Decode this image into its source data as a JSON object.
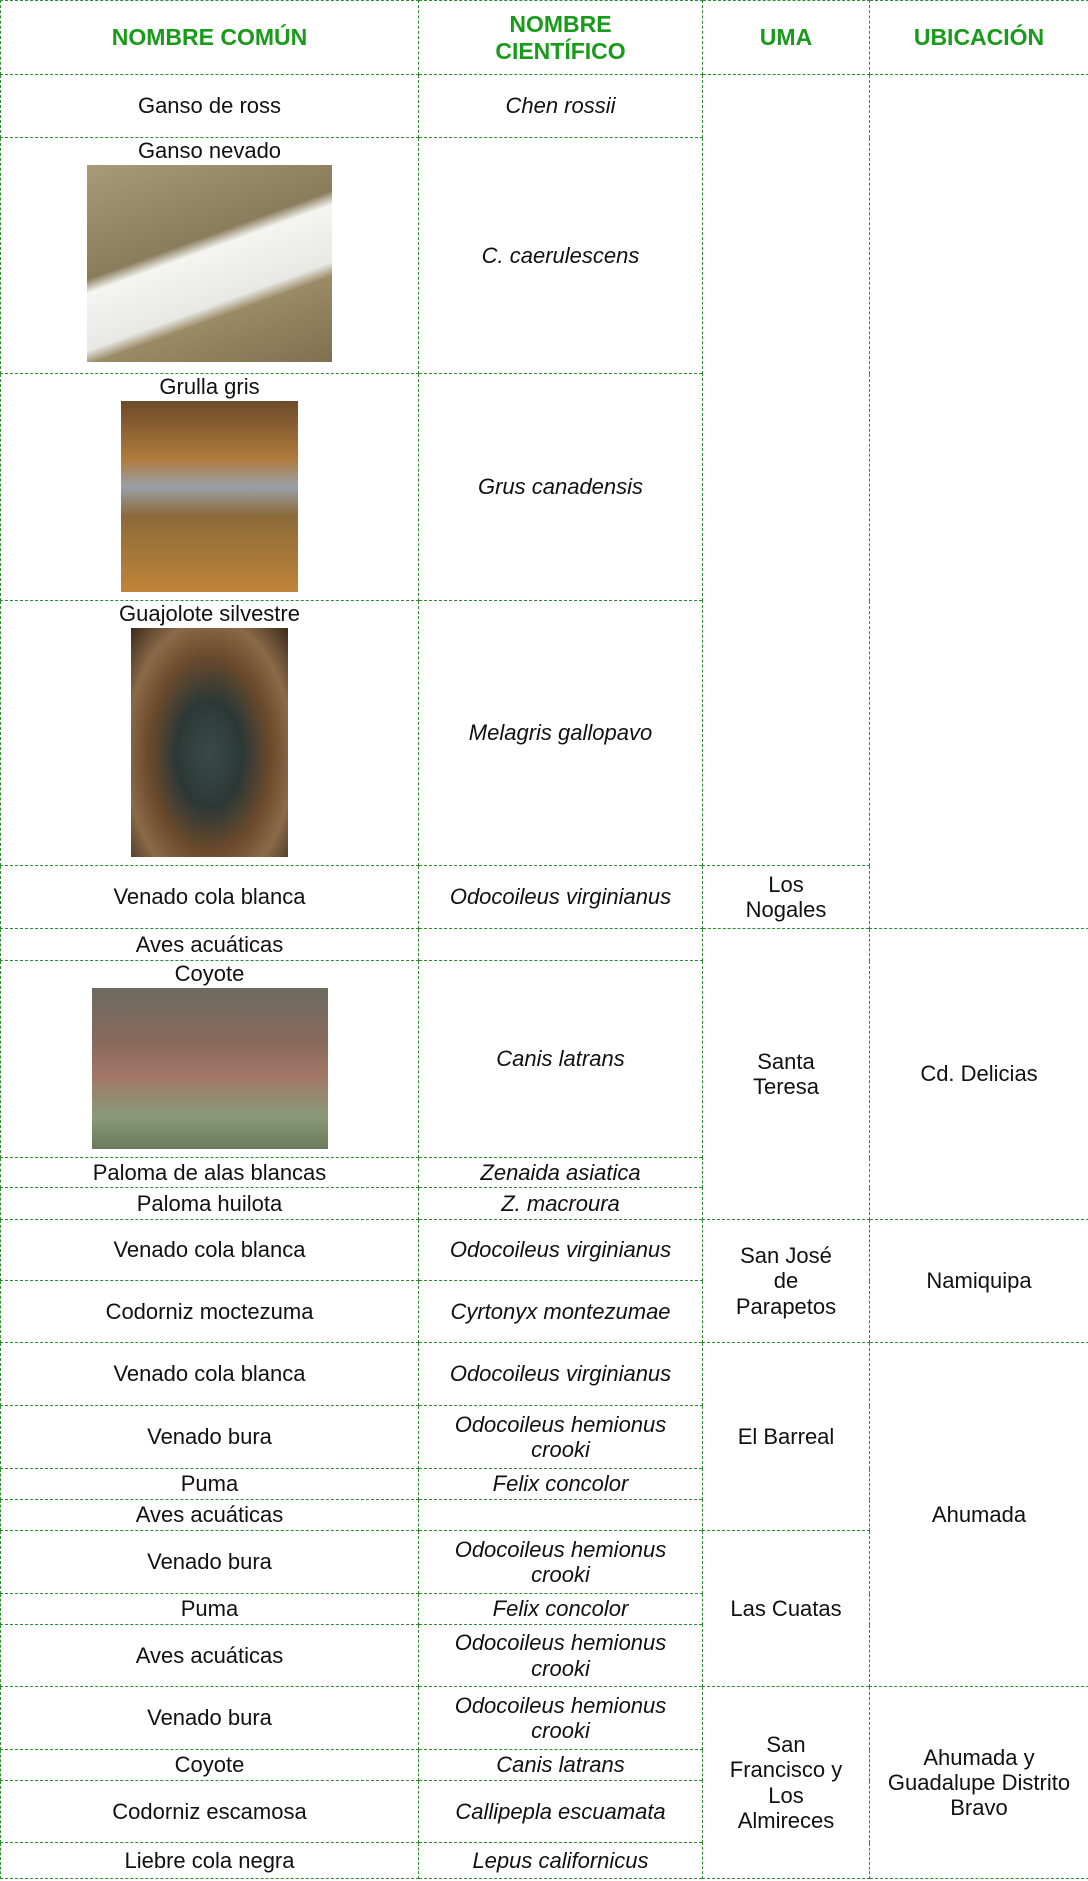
{
  "header": [
    "NOMBRE COMÚN",
    "NOMBRE CIENTÍFICO",
    "UMA",
    "UBICACIÓN"
  ],
  "locations": [
    {
      "umas": [
        {
          "species": [
            {
              "common": "Ganso de ross",
              "scientific": "Chen rossii"
            },
            {
              "common": "Ganso nevado",
              "scientific": "C. caerulescens"
            },
            {
              "common": "Grulla gris",
              "scientific": "Grus canadensis"
            },
            {
              "common": "Guajolote silvestre",
              "scientific": "Melagris gallopavo"
            }
          ]
        },
        {
          "name": "Los Nogales",
          "species": [
            {
              "common": "Venado cola blanca",
              "scientific": "Odocoileus virginianus"
            }
          ]
        }
      ]
    },
    {
      "name": "Cd. Delicias",
      "umas": [
        {
          "name": "Santa Teresa",
          "species": [
            {
              "common": "Aves acuáticas"
            },
            {
              "common": "Coyote",
              "scientific": "Canis latrans"
            },
            {
              "common": "Paloma de alas blancas",
              "scientific": "Zenaida asiatica"
            },
            {
              "common": "Paloma huilota",
              "scientific": "Z. macroura"
            }
          ]
        }
      ]
    },
    {
      "name": "Namiquipa",
      "umas": [
        {
          "name": "San José de Parapetos",
          "species": [
            {
              "common": "Venado cola blanca",
              "scientific": "Odocoileus virginianus"
            },
            {
              "common": "Codorniz moctezuma",
              "scientific": "Cyrtonyx montezumae"
            }
          ]
        }
      ]
    },
    {
      "name": "Ahumada",
      "umas": [
        {
          "name": "El Barreal",
          "species": [
            {
              "common": "Venado cola blanca",
              "scientific": "Odocoileus virginianus"
            },
            {
              "common": "Venado bura",
              "scientific": "Odocoileus hemionus crooki"
            },
            {
              "common": "Puma",
              "scientific": "Felix concolor"
            },
            {
              "common": "Aves acuáticas"
            }
          ]
        },
        {
          "name": "Las Cuatas",
          "species": [
            {
              "common": "Venado bura",
              "scientific": "Odocoileus hemionus crooki"
            },
            {
              "common": "Puma",
              "scientific": "Felix concolor"
            },
            {
              "common": "Aves acuáticas",
              "scientific": "Odocoileus hemionus crooki"
            }
          ]
        }
      ]
    },
    {
      "name": "Ahumada y Guadalupe Distrito Bravo",
      "umas": [
        {
          "name": "San Francisco y Los Almireces",
          "species": [
            {
              "common": "Venado bura",
              "scientific": "Odocoileus hemionus crooki"
            },
            {
              "common": "Coyote",
              "scientific": "Canis latrans"
            },
            {
              "common": "Codorniz escamosa",
              "scientific": "Callipepla escuamata"
            },
            {
              "common": "Liebre cola negra",
              "scientific": "Lepus californicus"
            }
          ]
        }
      ]
    }
  ]
}
